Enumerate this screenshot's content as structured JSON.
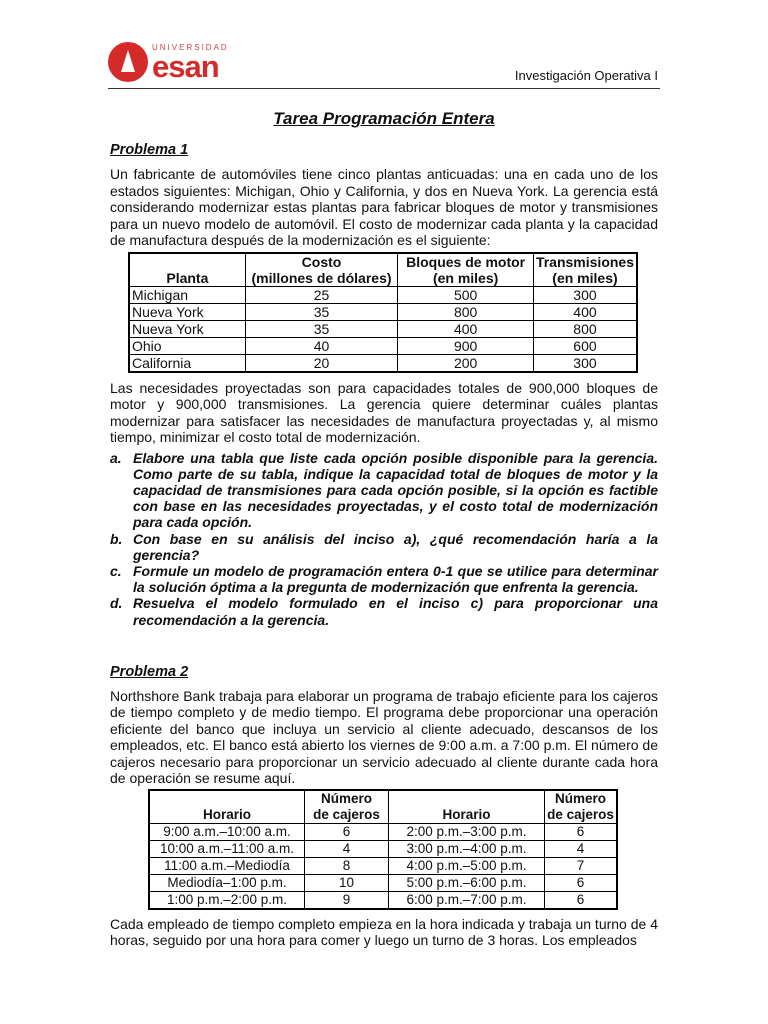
{
  "header": {
    "logo_text_top": "UNIVERSIDAD",
    "logo_text": "esan",
    "course": "Investigación Operativa I"
  },
  "title": "Tarea Programación Entera",
  "problema1": {
    "heading": "Problema 1",
    "intro": "Un fabricante de automóviles tiene cinco plantas anticuadas: una en cada uno de los estados siguientes: Michigan, Ohio y California, y dos en Nueva York. La gerencia está considerando modernizar estas plantas para fabricar bloques de motor y transmisiones para un nuevo modelo de automóvil. El costo de modernizar cada planta y la capacidad de manufactura después de la modernización es el siguiente:",
    "table": {
      "headers": [
        "Planta",
        "Costo\n(millones de dólares)",
        "Bloques de motor\n(en miles)",
        "Transmisiones\n(en miles)"
      ],
      "header_lines": [
        [
          "",
          "Planta"
        ],
        [
          "Costo",
          "(millones de dólares)"
        ],
        [
          "Bloques de motor",
          "(en miles)"
        ],
        [
          "Transmisiones",
          "(en miles)"
        ]
      ],
      "rows": [
        [
          "Michigan",
          "25",
          "500",
          "300"
        ],
        [
          "Nueva York",
          "35",
          "800",
          "400"
        ],
        [
          "Nueva York",
          "35",
          "400",
          "800"
        ],
        [
          "Ohio",
          "40",
          "900",
          "600"
        ],
        [
          "California",
          "20",
          "200",
          "300"
        ]
      ]
    },
    "body": "Las necesidades proyectadas son para capacidades totales de 900,000 bloques de motor y 900,000 transmisiones. La gerencia quiere determinar cuáles plantas modernizar para satisfacer las necesidades de manufactura proyectadas y, al mismo tiempo, minimizar el costo total de modernización.",
    "questions": [
      {
        "marker": "a.",
        "text": "Elabore una tabla que liste cada opción posible disponible para la gerencia. Como parte de su tabla, indique la capacidad total de bloques de motor y la capacidad de transmisiones para cada opción posible, si la opción es factible con base en las necesidades proyectadas, y el costo total de modernización para cada opción."
      },
      {
        "marker": "b.",
        "text": "Con base en su análisis del inciso a), ¿qué recomendación haría a la gerencia?"
      },
      {
        "marker": "c.",
        "text": "Formule un modelo de programación entera 0-1 que se utilice para determinar la solución óptima a la pregunta de modernización que enfrenta la gerencia."
      },
      {
        "marker": "d.",
        "text": "Resuelva el modelo formulado en el inciso c) para proporcionar una recomendación a la gerencia."
      }
    ]
  },
  "problema2": {
    "heading": "Problema 2",
    "intro": "Northshore Bank trabaja para elaborar un programa de trabajo eficiente para los cajeros de tiempo completo y de medio tiempo. El programa debe proporcionar una operación eficiente del banco que incluya un servicio al cliente adecuado, descansos de los empleados, etc. El banco está abierto los viernes de 9:00 a.m. a 7:00 p.m. El número de cajeros necesario para proporcionar un servicio adecuado al cliente durante cada hora de operación se resume aquí.",
    "table": {
      "header_lines": [
        [
          "",
          "Horario"
        ],
        [
          "Número",
          "de cajeros"
        ],
        [
          "",
          "Horario"
        ],
        [
          "Número",
          "de cajeros"
        ]
      ],
      "rows": [
        [
          "9:00 a.m.–10:00 a.m.",
          "6",
          "2:00 p.m.–3:00 p.m.",
          "6"
        ],
        [
          "10:00 a.m.–11:00 a.m.",
          "4",
          "3:00 p.m.–4:00 p.m.",
          "4"
        ],
        [
          "11:00 a.m.–Mediodía",
          "8",
          "4:00 p.m.–5:00 p.m.",
          "7"
        ],
        [
          "Mediodía–1:00 p.m.",
          "10",
          "5:00 p.m.–6:00 p.m.",
          "6"
        ],
        [
          "1:00 p.m.–2:00 p.m.",
          "9",
          "6:00 p.m.–7:00 p.m.",
          "6"
        ]
      ]
    },
    "body": "Cada empleado de tiempo completo empieza en la hora indicada y trabaja un turno de 4 horas, seguido por una hora para comer y luego un turno de 3 horas. Los empleados"
  },
  "colors": {
    "brand": "#d42a2a",
    "text": "#111111"
  }
}
